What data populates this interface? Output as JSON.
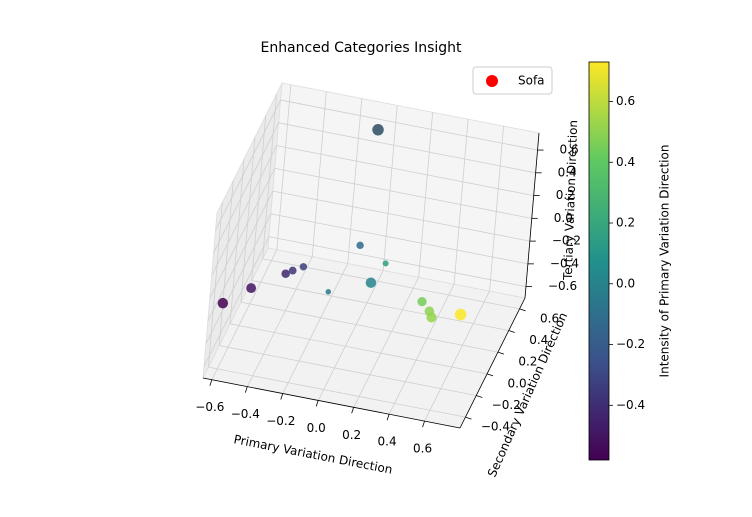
{
  "chart_data": {
    "type": "scatter3d",
    "title": "Enhanced Categories Insight",
    "xlabel": "Primary Variation Direction",
    "ylabel": "Secondary Variation Direction",
    "zlabel": "Tertiary Variation Direction",
    "colorbar_label": "Intensity of Primary Variation Direction",
    "colormap": "viridis",
    "clim": [
      -0.58,
      0.73
    ],
    "xlim": [
      -0.65,
      0.8
    ],
    "ylim": [
      -0.5,
      0.7
    ],
    "zlim": [
      -0.7,
      0.75
    ],
    "xticks": [
      {
        "value": -0.6,
        "label": "−0.6"
      },
      {
        "value": -0.4,
        "label": "−0.4"
      },
      {
        "value": -0.2,
        "label": "−0.2"
      },
      {
        "value": 0,
        "label": "0.0"
      },
      0.2,
      0.4,
      0.6
    ],
    "yticks": [
      {
        "value": -0.4,
        "label": "−0.4"
      },
      {
        "value": -0.2,
        "label": "−0.2"
      },
      {
        "value": 0,
        "label": "0.0"
      },
      0.2,
      0.4,
      0.6
    ],
    "zticks": [
      {
        "value": -0.6,
        "label": "−0.6"
      },
      {
        "value": -0.4,
        "label": "−0.4"
      },
      {
        "value": -0.2,
        "label": "−0.2"
      },
      {
        "value": 0,
        "label": "0.0"
      },
      0.2,
      0.4,
      0.6
    ],
    "colorbar_ticks": [
      {
        "value": -0.4,
        "label": "−0.4"
      },
      {
        "value": -0.2,
        "label": "−0.2"
      },
      {
        "value": 0,
        "label": "0.0"
      },
      0.2,
      0.4,
      0.6
    ],
    "grid": true,
    "points": {
      "x": [
        -0.58,
        -0.5,
        -0.42,
        -0.38,
        -0.33,
        -0.05,
        -0.12,
        0.15,
        0.0,
        -0.07,
        0.45,
        0.5,
        0.52,
        0.73
      ],
      "y": [
        -0.48,
        -0.2,
        0.22,
        0.21,
        0.24,
        -0.28,
        0.62,
        0.14,
        0.45,
        0.6,
        -0.18,
        -0.2,
        -0.22,
        -0.42
      ],
      "z": [
        -0.04,
        -0.15,
        -0.4,
        -0.35,
        -0.33,
        0.03,
        -0.44,
        -0.06,
        -0.57,
        0.61,
        0.0,
        -0.05,
        -0.08,
        0.2
      ],
      "sizes": [
        90,
        80,
        60,
        50,
        45,
        25,
        45,
        30,
        90,
        110,
        70,
        75,
        85,
        110
      ]
    },
    "highlight": {
      "name": "Sofa",
      "color": "red",
      "x": [
        -0.07
      ],
      "y": [
        0.6
      ],
      "z": [
        0.61
      ],
      "size": 100
    },
    "legend_loc": "upper right"
  }
}
